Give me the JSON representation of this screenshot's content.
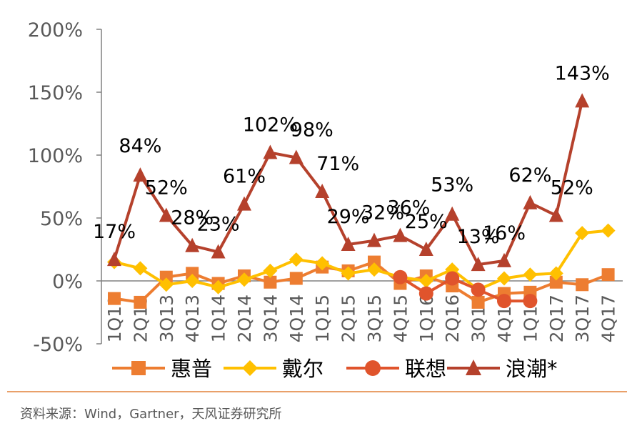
{
  "chart_data": {
    "type": "line",
    "title": "",
    "xlabel": "",
    "ylabel": "",
    "ylim": [
      -50,
      200
    ],
    "ytick_labels": [
      "200%",
      "150%",
      "100%",
      "50%",
      "0%",
      "-50%"
    ],
    "yticks": [
      200,
      150,
      100,
      50,
      0,
      -50
    ],
    "categories": [
      "1Q13",
      "2Q13",
      "3Q13",
      "4Q13",
      "1Q14",
      "2Q14",
      "3Q14",
      "4Q14",
      "1Q15",
      "2Q15",
      "3Q15",
      "4Q15",
      "1Q16",
      "2Q16",
      "3Q16",
      "4Q16",
      "1Q17",
      "2Q17",
      "3Q17",
      "4Q17"
    ],
    "legend_position": "bottom",
    "grid": false,
    "series": [
      {
        "name": "惠普",
        "color": "#ED7D31",
        "marker": "square",
        "values": [
          -14,
          -17,
          3,
          6,
          -2,
          4,
          -1,
          2,
          11,
          8,
          15,
          -2,
          4,
          -4,
          -17,
          -10,
          -9,
          -1,
          -3,
          5
        ]
      },
      {
        "name": "戴尔",
        "color": "#FFC000",
        "marker": "diamond",
        "values": [
          15,
          10,
          -3,
          0,
          -5,
          1,
          8,
          17,
          14,
          6,
          9,
          3,
          0,
          9,
          -7,
          2,
          5,
          6,
          38,
          40
        ]
      },
      {
        "name": "联想",
        "color": "#E0542C",
        "marker": "circle",
        "values": [
          null,
          null,
          null,
          null,
          null,
          null,
          null,
          null,
          null,
          null,
          null,
          3,
          -10,
          2,
          -7,
          -16,
          -16,
          null,
          null,
          null
        ]
      },
      {
        "name": "浪潮*",
        "color": "#B5412C",
        "marker": "triangle",
        "values": [
          17,
          84,
          52,
          28,
          23,
          61,
          102,
          98,
          71,
          29,
          32,
          36,
          25,
          53,
          13,
          16,
          62,
          52,
          143,
          null
        ],
        "data_labels": [
          "17%",
          "84%",
          "52%",
          "28%",
          "23%",
          "61%",
          "102%",
          "98%",
          "71%",
          "29%",
          "32%",
          "36%",
          "25%",
          "53%",
          "13%",
          "16%",
          "62%",
          "52%",
          "143%"
        ]
      }
    ]
  },
  "source_note": "资料来源：Wind，Gartner，天风证券研究所"
}
